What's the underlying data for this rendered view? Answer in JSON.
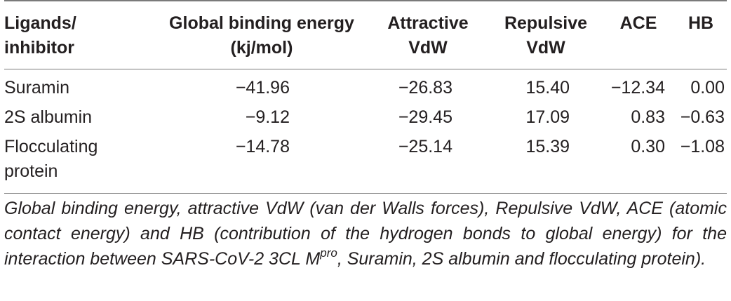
{
  "table": {
    "headers": [
      {
        "line1": "Ligands/",
        "line2": "inhibitor"
      },
      {
        "line1": "Global binding energy",
        "line2": "(kj/mol)"
      },
      {
        "line1": "Attractive",
        "line2": "VdW"
      },
      {
        "line1": "Repulsive",
        "line2": "VdW"
      },
      {
        "line1": "ACE",
        "line2": ""
      },
      {
        "line1": "HB",
        "line2": ""
      }
    ],
    "rows": [
      {
        "ligand_line1": "Suramin",
        "ligand_line2": "",
        "global": "−41.96",
        "attractive": "−26.83",
        "repulsive": "15.40",
        "ace": "−12.34",
        "hb": "0.00"
      },
      {
        "ligand_line1": "2S albumin",
        "ligand_line2": "",
        "global": "−9.12",
        "attractive": "−29.45",
        "repulsive": "17.09",
        "ace": "0.83",
        "hb": "−0.63"
      },
      {
        "ligand_line1": "Flocculating",
        "ligand_line2": "protein",
        "global": "−14.78",
        "attractive": "−25.14",
        "repulsive": "15.39",
        "ace": "0.30",
        "hb": "−1.08"
      }
    ]
  },
  "caption": {
    "before_sup": "Global binding energy, attractive VdW (van der Walls forces), Repulsive VdW, ACE (atomic contact energy) and HB (contribution of the hydrogen bonds to global energy) for the interaction between SARS-CoV-2 3CL M",
    "sup": "pro",
    "after_sup": ", Suramin, 2S albumin and flocculating protein)."
  }
}
